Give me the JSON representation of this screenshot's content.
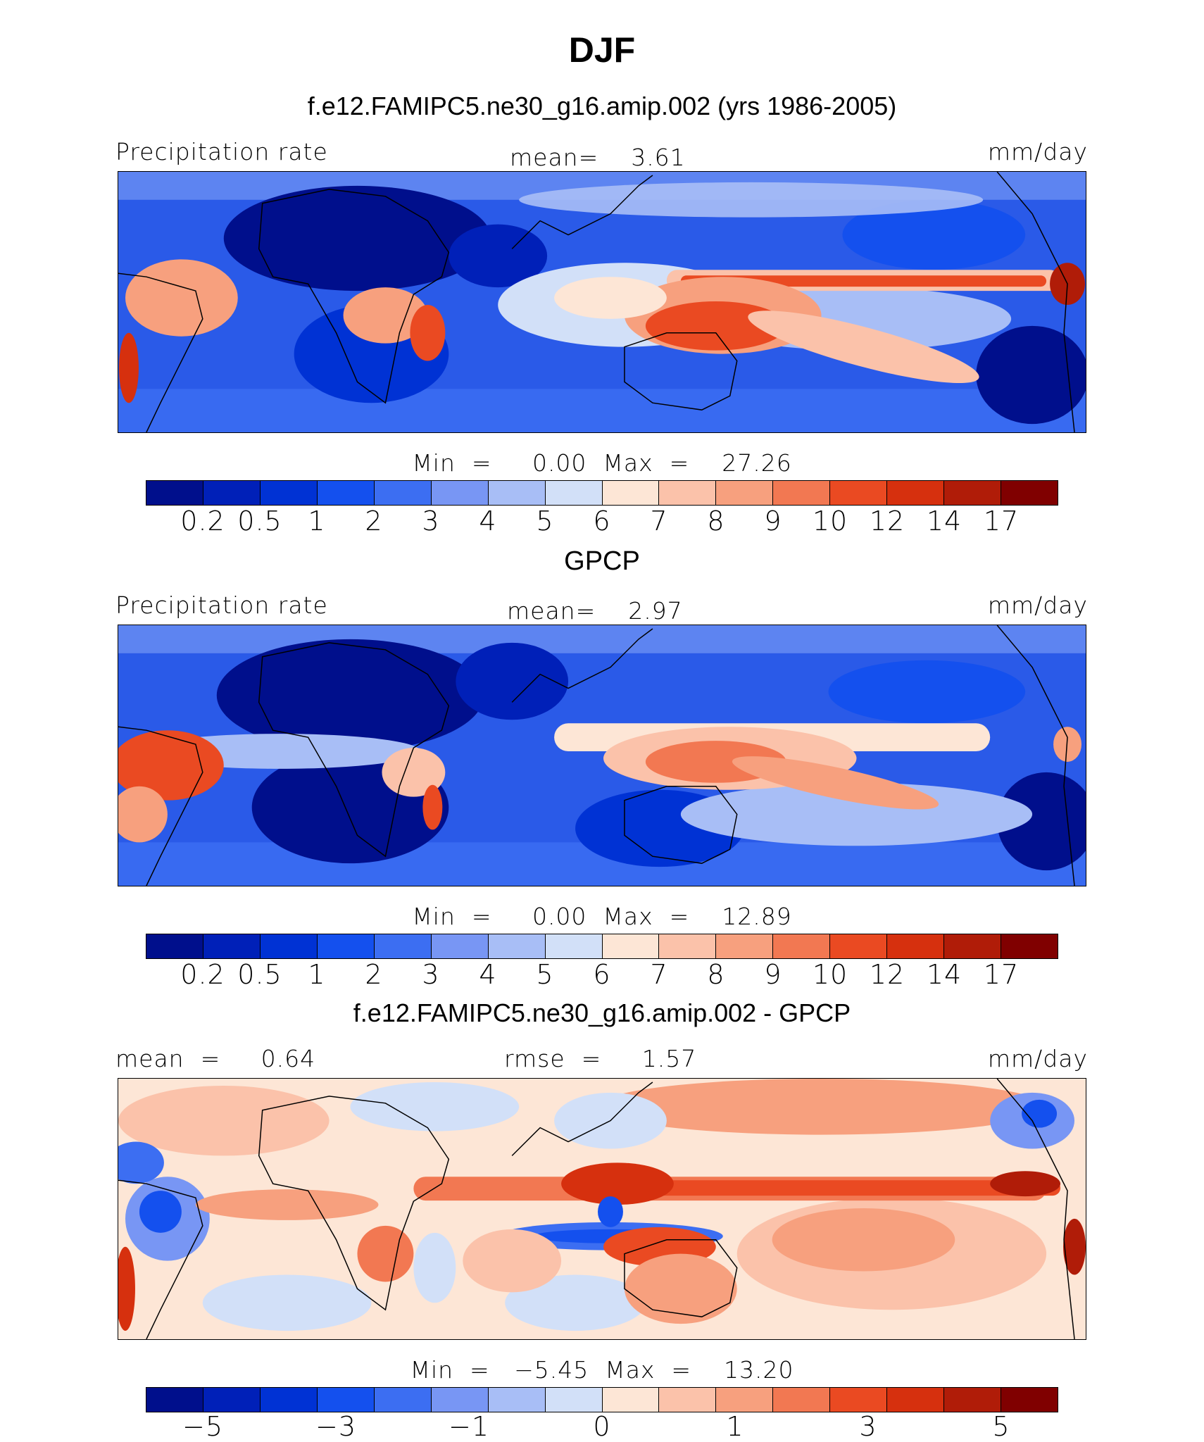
{
  "title": "DJF",
  "panels": [
    {
      "subtitle": "f.e12.FAMIPC5.ne30_g16.amip.002 (yrs 1986-2005)",
      "left_label": "Precipitation rate",
      "center_label": "mean=    3.61",
      "right_label": "mm/day",
      "min_max": "Min  =     0.00  Max  =    27.26",
      "colorbar": {
        "colors": [
          "#000f8c",
          "#0020b8",
          "#0032d4",
          "#1450ee",
          "#3c6ef2",
          "#7896f4",
          "#a8bef6",
          "#d2e0f8",
          "#fde6d6",
          "#fbc2aa",
          "#f7a07e",
          "#f27852",
          "#ea4a22",
          "#d6300e",
          "#b01c08",
          "#800000"
        ],
        "ticks": [
          "0.2",
          "0.5",
          "1",
          "2",
          "3",
          "4",
          "5",
          "6",
          "7",
          "8",
          "9",
          "10",
          "12",
          "14",
          "17"
        ]
      }
    },
    {
      "subtitle": "GPCP",
      "left_label": "Precipitation rate",
      "center_label": "mean=    2.97",
      "right_label": "mm/day",
      "min_max": "Min  =     0.00  Max  =    12.89",
      "colorbar": {
        "colors": [
          "#000f8c",
          "#0020b8",
          "#0032d4",
          "#1450ee",
          "#3c6ef2",
          "#7896f4",
          "#a8bef6",
          "#d2e0f8",
          "#fde6d6",
          "#fbc2aa",
          "#f7a07e",
          "#f27852",
          "#ea4a22",
          "#d6300e",
          "#b01c08",
          "#800000"
        ],
        "ticks": [
          "0.2",
          "0.5",
          "1",
          "2",
          "3",
          "4",
          "5",
          "6",
          "7",
          "8",
          "9",
          "10",
          "12",
          "14",
          "17"
        ]
      }
    },
    {
      "subtitle": "f.e12.FAMIPC5.ne30_g16.amip.002 - GPCP",
      "left_label": "mean  =     0.64",
      "center_label": "rmse  =     1.57",
      "right_label": "mm/day",
      "min_max": "Min  =   −5.45  Max  =    13.20",
      "colorbar": {
        "colors": [
          "#000f8c",
          "#0020b8",
          "#0032d4",
          "#1450ee",
          "#3c6ef2",
          "#7896f4",
          "#a8bef6",
          "#d2e0f8",
          "#fde6d6",
          "#fbc2aa",
          "#f7a07e",
          "#f27852",
          "#ea4a22",
          "#d6300e",
          "#b01c08",
          "#800000"
        ],
        "ticks": [
          "−5",
          "−3",
          "−1",
          "0",
          "1",
          "3",
          "5"
        ]
      }
    }
  ]
}
